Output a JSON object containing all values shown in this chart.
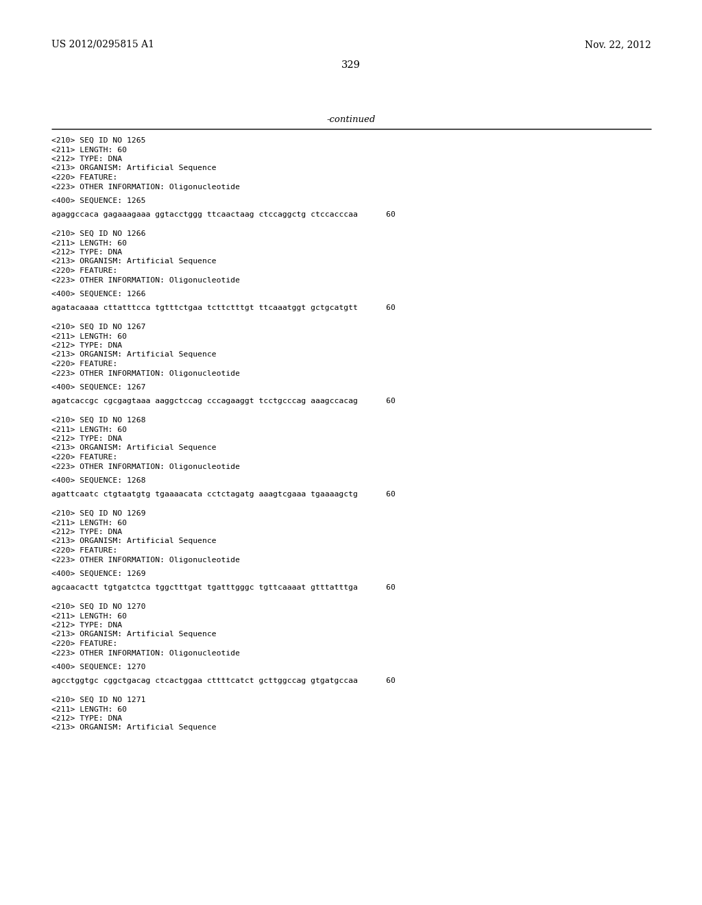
{
  "bg_color": "#ffffff",
  "header_left": "US 2012/0295815 A1",
  "header_right": "Nov. 22, 2012",
  "page_number": "329",
  "continued_text": "-continued",
  "monospace_fontsize": 8.2,
  "header_fontsize": 10.0,
  "page_num_fontsize": 10.5,
  "continued_fontsize": 9.5,
  "blocks": [
    {
      "meta_lines": [
        "<210> SEQ ID NO 1265",
        "<211> LENGTH: 60",
        "<212> TYPE: DNA",
        "<213> ORGANISM: Artificial Sequence",
        "<220> FEATURE:",
        "<223> OTHER INFORMATION: Oligonucleotide"
      ],
      "seq_label": "<400> SEQUENCE: 1265",
      "sequence": "agaggccaca gagaaagaaa ggtacctggg ttcaactaag ctccaggctg ctccacccaa      60"
    },
    {
      "meta_lines": [
        "<210> SEQ ID NO 1266",
        "<211> LENGTH: 60",
        "<212> TYPE: DNA",
        "<213> ORGANISM: Artificial Sequence",
        "<220> FEATURE:",
        "<223> OTHER INFORMATION: Oligonucleotide"
      ],
      "seq_label": "<400> SEQUENCE: 1266",
      "sequence": "agatacaaaa cttatttcca tgtttctgaa tcttctttgt ttcaaatggt gctgcatgtt      60"
    },
    {
      "meta_lines": [
        "<210> SEQ ID NO 1267",
        "<211> LENGTH: 60",
        "<212> TYPE: DNA",
        "<213> ORGANISM: Artificial Sequence",
        "<220> FEATURE:",
        "<223> OTHER INFORMATION: Oligonucleotide"
      ],
      "seq_label": "<400> SEQUENCE: 1267",
      "sequence": "agatcaccgc cgcgagtaaa aaggctccag cccagaaggt tcctgcccag aaagccacag      60"
    },
    {
      "meta_lines": [
        "<210> SEQ ID NO 1268",
        "<211> LENGTH: 60",
        "<212> TYPE: DNA",
        "<213> ORGANISM: Artificial Sequence",
        "<220> FEATURE:",
        "<223> OTHER INFORMATION: Oligonucleotide"
      ],
      "seq_label": "<400> SEQUENCE: 1268",
      "sequence": "agattcaatc ctgtaatgtg tgaaaacata cctctagatg aaagtcgaaa tgaaaagctg      60"
    },
    {
      "meta_lines": [
        "<210> SEQ ID NO 1269",
        "<211> LENGTH: 60",
        "<212> TYPE: DNA",
        "<213> ORGANISM: Artificial Sequence",
        "<220> FEATURE:",
        "<223> OTHER INFORMATION: Oligonucleotide"
      ],
      "seq_label": "<400> SEQUENCE: 1269",
      "sequence": "agcaacactt tgtgatctca tggctttgat tgatttgggc tgttcaaaat gtttatttga      60"
    },
    {
      "meta_lines": [
        "<210> SEQ ID NO 1270",
        "<211> LENGTH: 60",
        "<212> TYPE: DNA",
        "<213> ORGANISM: Artificial Sequence",
        "<220> FEATURE:",
        "<223> OTHER INFORMATION: Oligonucleotide"
      ],
      "seq_label": "<400> SEQUENCE: 1270",
      "sequence": "agcctggtgc cggctgacag ctcactggaa cttttcatct gcttggccag gtgatgccaa      60"
    },
    {
      "meta_lines": [
        "<210> SEQ ID NO 1271",
        "<211> LENGTH: 60",
        "<212> TYPE: DNA",
        "<213> ORGANISM: Artificial Sequence"
      ],
      "seq_label": null,
      "sequence": null
    }
  ]
}
